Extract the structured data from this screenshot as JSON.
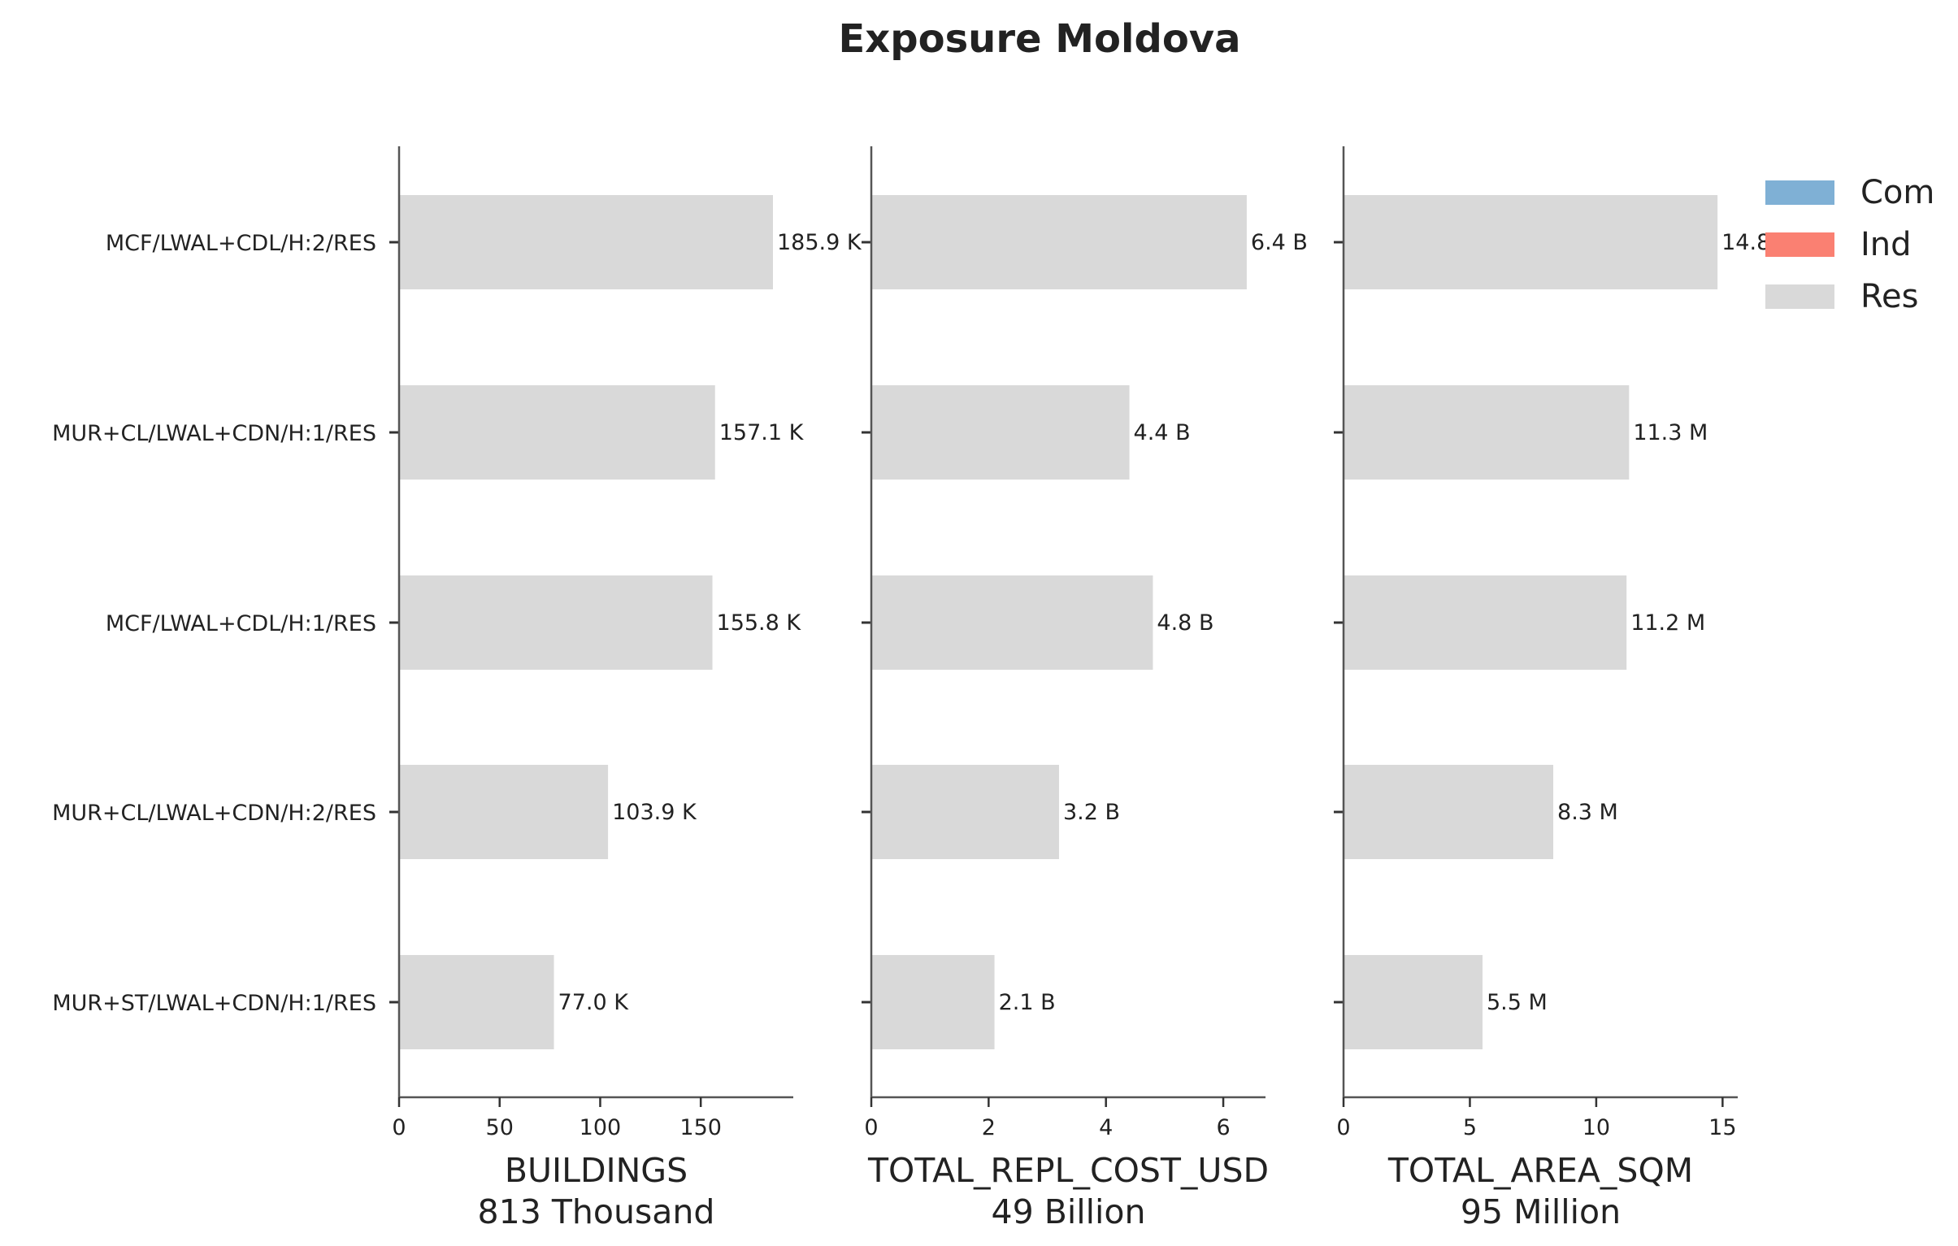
{
  "chart_data": {
    "type": "bar",
    "orientation": "horizontal",
    "title": "Exposure Moldova",
    "categories": [
      "MCF/LWAL+CDL/H:2/RES",
      "MUR+CL/LWAL+CDN/H:1/RES",
      "MCF/LWAL+CDL/H:1/RES",
      "MUR+CL/LWAL+CDN/H:2/RES",
      "MUR+ST/LWAL+CDN/H:1/RES"
    ],
    "legend": {
      "position": "top-right",
      "entries": [
        {
          "name": "Com",
          "color": "#7fb0d5"
        },
        {
          "name": "Ind",
          "color": "#fa8072"
        },
        {
          "name": "Res",
          "color": "#d9d9d9"
        }
      ]
    },
    "panels": [
      {
        "xlabel": "BUILDINGS",
        "subtitle": "813 Thousand",
        "xlim": [
          0,
          196
        ],
        "ticks": [
          0,
          50,
          100,
          150
        ],
        "values": [
          185.9,
          157.1,
          155.8,
          103.9,
          77.0
        ],
        "value_labels": [
          "185.9 K",
          "157.1 K",
          "155.8 K",
          "103.9 K",
          "77.0 K"
        ],
        "series": "Res"
      },
      {
        "xlabel": "TOTAL_REPL_COST_USD",
        "subtitle": "49 Billion",
        "xlim": [
          0,
          6.72
        ],
        "ticks": [
          0,
          2,
          4,
          6
        ],
        "values": [
          6.4,
          4.4,
          4.8,
          3.2,
          2.1
        ],
        "value_labels": [
          "6.4 B",
          "4.4 B",
          "4.8 B",
          "3.2 B",
          "2.1 B"
        ],
        "series": "Res"
      },
      {
        "xlabel": "TOTAL_AREA_SQM",
        "subtitle": "95 Million",
        "xlim": [
          0,
          15.6
        ],
        "ticks": [
          0,
          5,
          10,
          15
        ],
        "values": [
          14.8,
          11.3,
          11.2,
          8.3,
          5.5
        ],
        "value_labels": [
          "14.8 M",
          "11.3 M",
          "11.2 M",
          "8.3 M",
          "5.5 M"
        ],
        "series": "Res"
      }
    ],
    "grid": false,
    "colors": {
      "bar": "#d9d9d9",
      "axis": "#555555",
      "text": "#222222"
    }
  }
}
